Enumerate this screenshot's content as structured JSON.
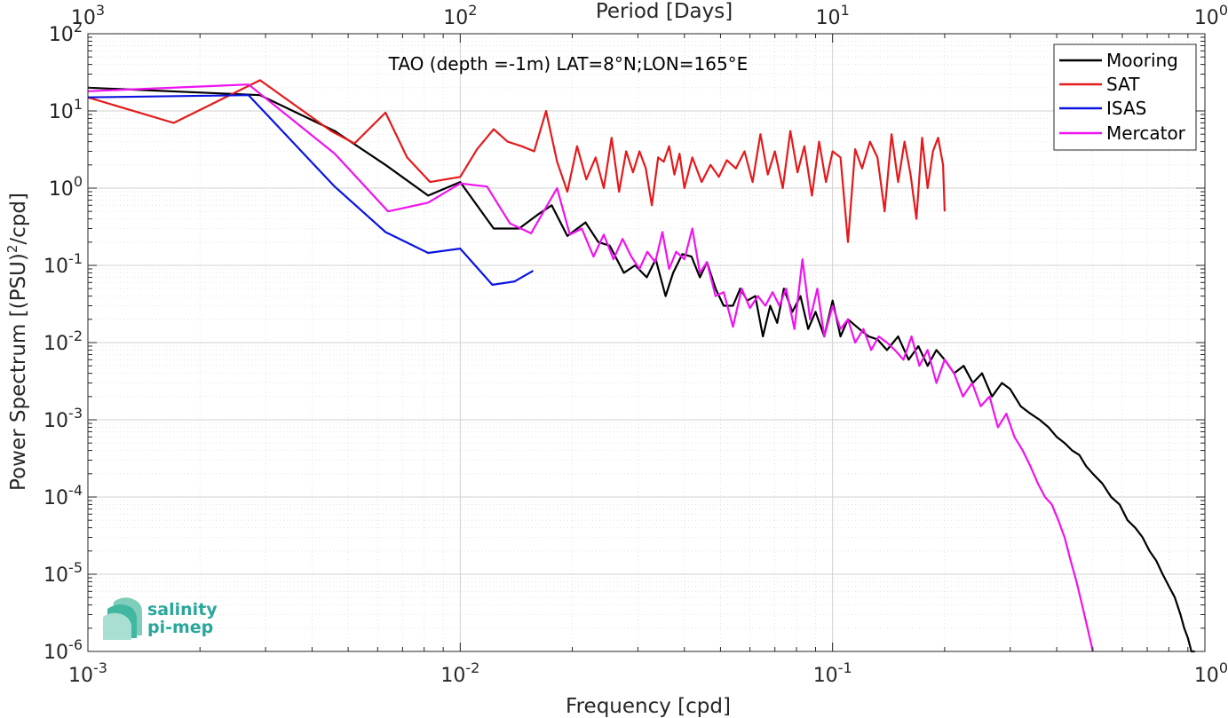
{
  "chart_data": {
    "type": "line",
    "title": "TAO (depth =-1m) LAT=8°N;LON=165°E",
    "xlabel": "Frequency [cpd]",
    "ylabel": "Power Spectrum [(PSU)²/cpd]",
    "ylabel_main": "Power Spectrum [(PSU)",
    "ylabel_sup": "2",
    "ylabel_tail": "/cpd]",
    "x_top_label": "Period [Days]",
    "xscale": "log",
    "yscale": "log",
    "xlim": [
      0.001,
      1
    ],
    "ylim": [
      1e-06,
      100
    ],
    "grid": true,
    "legend_position": "top-right",
    "x_ticks": [
      {
        "value": 0.001,
        "base": "10",
        "exp": "-3"
      },
      {
        "value": 0.01,
        "base": "10",
        "exp": "-2"
      },
      {
        "value": 0.1,
        "base": "10",
        "exp": "-1"
      },
      {
        "value": 1,
        "base": "10",
        "exp": "0"
      }
    ],
    "x_top_ticks": [
      {
        "value": 0.001,
        "base": "10",
        "exp": "3"
      },
      {
        "value": 0.01,
        "base": "10",
        "exp": "2"
      },
      {
        "value": 0.1,
        "base": "10",
        "exp": "1"
      },
      {
        "value": 1,
        "base": "10",
        "exp": "0"
      }
    ],
    "y_ticks": [
      {
        "value": 100,
        "base": "10",
        "exp": "2"
      },
      {
        "value": 10,
        "base": "10",
        "exp": "1"
      },
      {
        "value": 1,
        "base": "10",
        "exp": "0"
      },
      {
        "value": 0.1,
        "base": "10",
        "exp": "-1"
      },
      {
        "value": 0.01,
        "base": "10",
        "exp": "-2"
      },
      {
        "value": 0.001,
        "base": "10",
        "exp": "-3"
      },
      {
        "value": 0.0001,
        "base": "10",
        "exp": "-4"
      },
      {
        "value": 1e-05,
        "base": "10",
        "exp": "-5"
      },
      {
        "value": 1e-06,
        "base": "10",
        "exp": "-6"
      }
    ],
    "series": [
      {
        "name": "Mooring",
        "color": "#000000",
        "x": [
          0.001,
          0.0029,
          0.0046,
          0.0063,
          0.0082,
          0.01,
          0.0123,
          0.0144,
          0.0161,
          0.0176,
          0.0194,
          0.0217,
          0.0235,
          0.0252,
          0.0275,
          0.0295,
          0.0317,
          0.0335,
          0.0356,
          0.0373,
          0.0395,
          0.0418,
          0.044,
          0.046,
          0.0485,
          0.051,
          0.054,
          0.0565,
          0.059,
          0.062,
          0.065,
          0.068,
          0.071,
          0.074,
          0.078,
          0.082,
          0.086,
          0.09,
          0.095,
          0.1,
          0.105,
          0.11,
          0.118,
          0.125,
          0.132,
          0.14,
          0.15,
          0.16,
          0.17,
          0.18,
          0.19,
          0.2,
          0.212,
          0.225,
          0.238,
          0.252,
          0.268,
          0.285,
          0.3,
          0.32,
          0.34,
          0.36,
          0.38,
          0.4,
          0.42,
          0.44,
          0.46,
          0.48,
          0.5,
          0.53,
          0.56,
          0.59,
          0.62,
          0.65,
          0.68,
          0.71,
          0.74,
          0.77,
          0.8,
          0.83,
          0.86,
          0.88,
          0.9,
          0.92,
          0.94
        ],
        "y": [
          20,
          16,
          5.5,
          2.0,
          0.8,
          1.2,
          0.3,
          0.3,
          0.45,
          0.6,
          0.24,
          0.36,
          0.2,
          0.18,
          0.08,
          0.1,
          0.07,
          0.12,
          0.04,
          0.08,
          0.14,
          0.13,
          0.07,
          0.11,
          0.05,
          0.03,
          0.03,
          0.05,
          0.035,
          0.04,
          0.012,
          0.03,
          0.018,
          0.05,
          0.025,
          0.04,
          0.015,
          0.025,
          0.012,
          0.035,
          0.012,
          0.02,
          0.015,
          0.012,
          0.011,
          0.008,
          0.012,
          0.006,
          0.009,
          0.005,
          0.008,
          0.006,
          0.004,
          0.005,
          0.003,
          0.004,
          0.002,
          0.003,
          0.0025,
          0.0015,
          0.0012,
          0.001,
          0.0008,
          0.0006,
          0.0005,
          0.0004,
          0.00035,
          0.00025,
          0.0002,
          0.00015,
          0.0001,
          8e-05,
          5e-05,
          4e-05,
          3e-05,
          2e-05,
          1.5e-05,
          1e-05,
          7e-06,
          5e-06,
          3e-06,
          2e-06,
          1.5e-06,
          1e-06,
          1e-06
        ]
      },
      {
        "name": "SAT",
        "color": "#e41a1c",
        "x": [
          0.001,
          0.0017,
          0.0029,
          0.0045,
          0.0052,
          0.0063,
          0.0072,
          0.0083,
          0.01,
          0.0111,
          0.0123,
          0.0134,
          0.0146,
          0.0158,
          0.017,
          0.0182,
          0.0194,
          0.0206,
          0.0218,
          0.0231,
          0.0243,
          0.0255,
          0.0267,
          0.0279,
          0.0291,
          0.0303,
          0.0315,
          0.0327,
          0.034,
          0.0352,
          0.0364,
          0.0376,
          0.0388,
          0.04,
          0.042,
          0.0445,
          0.047,
          0.0495,
          0.052,
          0.055,
          0.058,
          0.061,
          0.064,
          0.067,
          0.07,
          0.0735,
          0.077,
          0.0805,
          0.084,
          0.088,
          0.092,
          0.096,
          0.1,
          0.105,
          0.11,
          0.115,
          0.12,
          0.126,
          0.132,
          0.138,
          0.144,
          0.15,
          0.156,
          0.162,
          0.168,
          0.174,
          0.18,
          0.186,
          0.192,
          0.198,
          0.2
        ],
        "y": [
          15,
          7,
          25,
          5.5,
          3.8,
          9.5,
          2.5,
          1.2,
          1.4,
          3.2,
          5.8,
          4.0,
          3.5,
          3.0,
          10,
          2.2,
          0.9,
          3.5,
          1.3,
          2.5,
          1.0,
          4.5,
          0.9,
          3.0,
          1.6,
          3.0,
          1.8,
          0.6,
          2.5,
          2.2,
          3.5,
          1.5,
          2.8,
          1.0,
          2.5,
          1.2,
          2.0,
          1.4,
          2.3,
          1.8,
          3.0,
          1.2,
          5.0,
          1.5,
          3.0,
          1.0,
          5.5,
          1.6,
          3.5,
          0.8,
          4.0,
          1.2,
          3.0,
          2.5,
          0.2,
          3.2,
          1.8,
          4.0,
          2.5,
          0.5,
          5.0,
          1.2,
          4.0,
          1.5,
          0.4,
          4.5,
          1.0,
          3.0,
          4.5,
          2.0,
          0.5
        ]
      },
      {
        "name": "ISAS",
        "color": "#0a14e0",
        "x": [
          0.001,
          0.0027,
          0.0046,
          0.0063,
          0.0082,
          0.01,
          0.0122,
          0.014,
          0.0157
        ],
        "y": [
          15,
          16,
          1.05,
          0.27,
          0.145,
          0.165,
          0.056,
          0.062,
          0.085
        ]
      },
      {
        "name": "Mercator",
        "color": "#f012f0",
        "x": [
          0.001,
          0.0027,
          0.0046,
          0.0064,
          0.0082,
          0.01,
          0.0118,
          0.0136,
          0.0155,
          0.0182,
          0.0197,
          0.0212,
          0.0228,
          0.0243,
          0.0258,
          0.0273,
          0.0288,
          0.0303,
          0.0318,
          0.0334,
          0.0349,
          0.0364,
          0.038,
          0.04,
          0.042,
          0.044,
          0.046,
          0.0485,
          0.051,
          0.054,
          0.057,
          0.06,
          0.063,
          0.066,
          0.069,
          0.072,
          0.075,
          0.079,
          0.083,
          0.087,
          0.091,
          0.095,
          0.1,
          0.105,
          0.11,
          0.115,
          0.121,
          0.127,
          0.133,
          0.14,
          0.147,
          0.155,
          0.163,
          0.171,
          0.18,
          0.19,
          0.2,
          0.212,
          0.224,
          0.237,
          0.25,
          0.264,
          0.278,
          0.293,
          0.308,
          0.324,
          0.34,
          0.356,
          0.372,
          0.388,
          0.404,
          0.42,
          0.436,
          0.452,
          0.468,
          0.484,
          0.5
        ],
        "y": [
          18,
          22,
          2.8,
          0.5,
          0.65,
          1.15,
          1.05,
          0.35,
          0.26,
          1.0,
          0.25,
          0.3,
          0.13,
          0.25,
          0.12,
          0.22,
          0.13,
          0.09,
          0.15,
          0.11,
          0.27,
          0.09,
          0.15,
          0.12,
          0.3,
          0.08,
          0.11,
          0.04,
          0.045,
          0.016,
          0.05,
          0.028,
          0.04,
          0.03,
          0.045,
          0.03,
          0.05,
          0.015,
          0.12,
          0.02,
          0.05,
          0.012,
          0.03,
          0.015,
          0.02,
          0.01,
          0.015,
          0.008,
          0.012,
          0.01,
          0.008,
          0.006,
          0.012,
          0.005,
          0.008,
          0.003,
          0.006,
          0.004,
          0.002,
          0.003,
          0.0015,
          0.002,
          0.0008,
          0.0012,
          0.0006,
          0.0004,
          0.00025,
          0.00015,
          0.0001,
          8e-05,
          5e-05,
          3e-05,
          1.5e-05,
          8e-06,
          4e-06,
          2e-06,
          1e-06
        ]
      }
    ]
  },
  "logo": {
    "line1": "salinity",
    "line2": "pi-mep"
  }
}
